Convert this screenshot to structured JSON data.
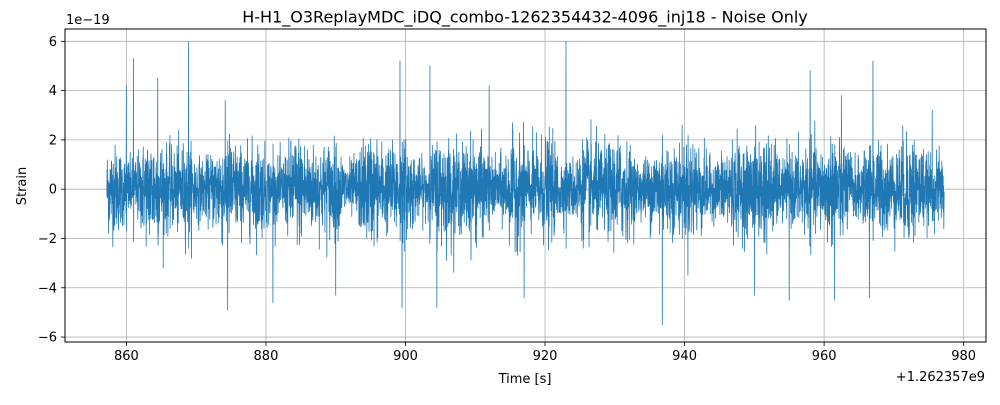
{
  "chart_data": {
    "type": "line",
    "title": "H-H1_O3ReplayMDC_iDQ_combo-1262354432-4096_inj18 - Noise Only",
    "xlabel": "Time [s]",
    "ylabel": "Strain",
    "x_offset_label": "+1.262357e9",
    "y_scale_label": "1e−19",
    "x_range": [
      857.2,
      977.2
    ],
    "xlim": [
      851.2,
      983.2
    ],
    "ylim": [
      -6.2,
      6.5
    ],
    "x_ticks": [
      860,
      880,
      900,
      920,
      940,
      960,
      980
    ],
    "x_tick_labels": [
      "860",
      "880",
      "900",
      "920",
      "940",
      "960",
      "980"
    ],
    "y_ticks": [
      -6,
      -4,
      -2,
      0,
      2,
      4,
      6
    ],
    "y_tick_labels": [
      "−6",
      "−4",
      "−2",
      "0",
      "2",
      "4",
      "6"
    ],
    "grid": true,
    "legend": "none",
    "series": [
      {
        "color": "#1f77b4",
        "envelope_max": 6.0,
        "envelope_min": -5.5,
        "typical_amplitude": 2.0,
        "peaks": [
          {
            "x": 868.9,
            "y": 6.0
          },
          {
            "x": 923.0,
            "y": 6.0
          },
          {
            "x": 936.8,
            "y": -5.5
          },
          {
            "x": 860.0,
            "y": 4.2
          },
          {
            "x": 864.5,
            "y": 4.5
          },
          {
            "x": 899.2,
            "y": 5.2
          },
          {
            "x": 903.5,
            "y": 5.0
          },
          {
            "x": 912.0,
            "y": 4.2
          },
          {
            "x": 958.0,
            "y": 4.8
          },
          {
            "x": 967.0,
            "y": 5.2
          },
          {
            "x": 975.5,
            "y": 3.2
          },
          {
            "x": 861.0,
            "y": 5.3
          },
          {
            "x": 874.5,
            "y": -4.9
          },
          {
            "x": 881.0,
            "y": -4.6
          },
          {
            "x": 890.0,
            "y": -4.3
          },
          {
            "x": 899.5,
            "y": -4.8
          },
          {
            "x": 904.5,
            "y": -4.8
          },
          {
            "x": 917.0,
            "y": -4.4
          },
          {
            "x": 950.0,
            "y": -4.3
          },
          {
            "x": 955.0,
            "y": -4.5
          },
          {
            "x": 961.5,
            "y": -4.5
          },
          {
            "x": 966.5,
            "y": -4.4
          }
        ]
      }
    ]
  }
}
